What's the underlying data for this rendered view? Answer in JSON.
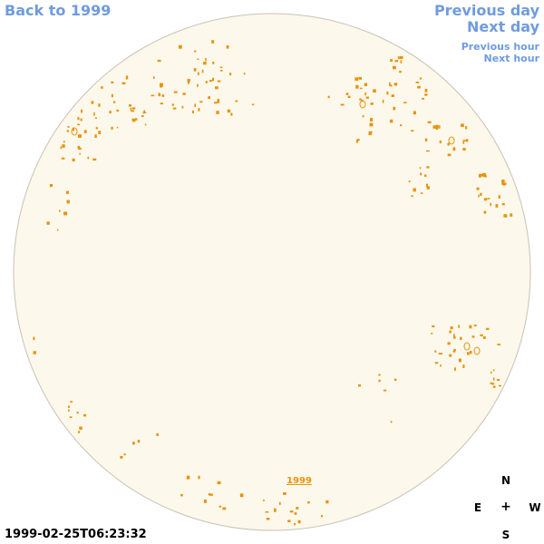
{
  "nav": {
    "back": "Back to 1999",
    "previous_day": "Previous day",
    "next_day": "Next day",
    "previous_hour": "Previous hour",
    "next_hour": "Next hour"
  },
  "disk": {
    "year_label": "1999",
    "fill_color": "#fdf8ec",
    "edge_color": "#c9c2b4",
    "region_color": "#e8930c"
  },
  "compass": {
    "north": "N",
    "east": "E",
    "center": "+",
    "west": "W",
    "south": "S"
  },
  "timestamp": "1999-02-25T06:23:32"
}
